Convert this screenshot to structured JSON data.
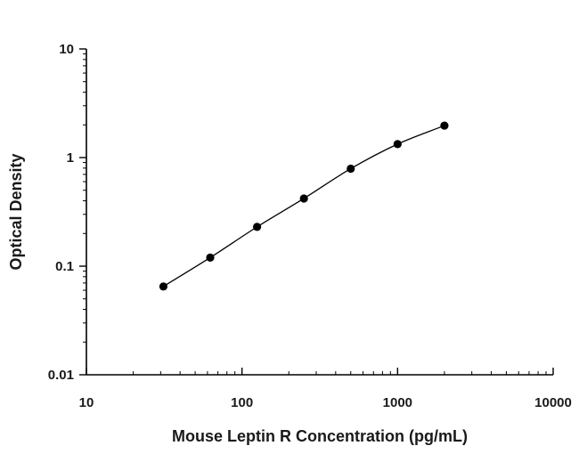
{
  "chart_data": {
    "type": "scatter",
    "title": "",
    "xlabel": "Mouse Leptin R Concentration (pg/mL)",
    "ylabel": "Optical Density",
    "x_scale": "log",
    "y_scale": "log",
    "xlim": [
      10,
      10000
    ],
    "ylim": [
      0.01,
      10
    ],
    "x_tick_labels": [
      "10",
      "100",
      "1000",
      "10000"
    ],
    "y_tick_labels": [
      "0.01",
      "0.1",
      "1",
      "10"
    ],
    "grid": false,
    "legend": "none",
    "fit_curve": true,
    "marker_color": "#000000",
    "curve_color": "#000000",
    "series": [
      {
        "x": [
          31.25,
          62.5,
          125,
          250,
          500,
          1000,
          2000
        ],
        "y": [
          0.065,
          0.12,
          0.23,
          0.42,
          0.79,
          1.33,
          1.97
        ]
      }
    ]
  }
}
